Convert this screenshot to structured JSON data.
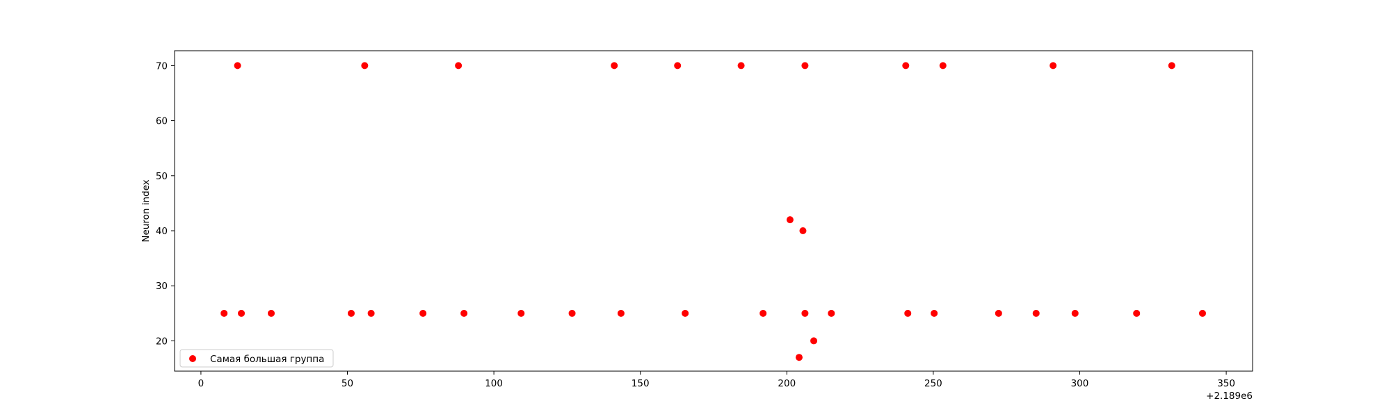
{
  "chart_data": {
    "type": "scatter",
    "title": "",
    "xlabel": "",
    "ylabel": "Neuron index",
    "x_offset_label": "+2.189e6",
    "xlim": [
      -9,
      359
    ],
    "ylim": [
      14.5,
      72.7
    ],
    "x_ticks": [
      0,
      50,
      100,
      150,
      200,
      250,
      300,
      350
    ],
    "y_ticks": [
      20,
      30,
      40,
      50,
      60,
      70
    ],
    "grid": false,
    "legend": {
      "location": "lower-left",
      "entries": [
        "Самая большая группа"
      ]
    },
    "series": [
      {
        "name": "Самая большая группа",
        "color": "#ff0000",
        "points": [
          {
            "x": 12.5,
            "y": 70
          },
          {
            "x": 55.9,
            "y": 70
          },
          {
            "x": 87.9,
            "y": 70
          },
          {
            "x": 141.1,
            "y": 70
          },
          {
            "x": 162.7,
            "y": 70
          },
          {
            "x": 184.4,
            "y": 70
          },
          {
            "x": 206.2,
            "y": 70
          },
          {
            "x": 240.6,
            "y": 70
          },
          {
            "x": 253.3,
            "y": 70
          },
          {
            "x": 290.9,
            "y": 70
          },
          {
            "x": 331.4,
            "y": 70
          },
          {
            "x": 201.1,
            "y": 42
          },
          {
            "x": 205.5,
            "y": 40
          },
          {
            "x": 7.9,
            "y": 25
          },
          {
            "x": 13.8,
            "y": 25
          },
          {
            "x": 24.0,
            "y": 25
          },
          {
            "x": 51.3,
            "y": 25
          },
          {
            "x": 58.1,
            "y": 25
          },
          {
            "x": 75.8,
            "y": 25
          },
          {
            "x": 89.8,
            "y": 25
          },
          {
            "x": 109.3,
            "y": 25
          },
          {
            "x": 126.7,
            "y": 25
          },
          {
            "x": 143.4,
            "y": 25
          },
          {
            "x": 165.3,
            "y": 25
          },
          {
            "x": 191.9,
            "y": 25
          },
          {
            "x": 206.2,
            "y": 25
          },
          {
            "x": 215.2,
            "y": 25
          },
          {
            "x": 241.3,
            "y": 25
          },
          {
            "x": 250.3,
            "y": 25
          },
          {
            "x": 272.3,
            "y": 25
          },
          {
            "x": 285.1,
            "y": 25
          },
          {
            "x": 298.4,
            "y": 25
          },
          {
            "x": 319.4,
            "y": 25
          },
          {
            "x": 341.9,
            "y": 25
          },
          {
            "x": 209.2,
            "y": 20
          },
          {
            "x": 204.2,
            "y": 17
          }
        ]
      }
    ]
  }
}
